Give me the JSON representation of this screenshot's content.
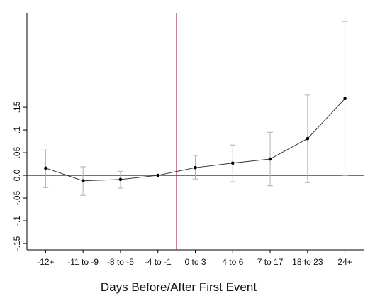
{
  "chart_data": {
    "type": "errorbar",
    "xlabel": "Days Before/After First Event",
    "categories": [
      "-12+",
      "-11 to -9",
      "-8 to -5",
      "-4 to -1",
      "0 to 3",
      "4 to 6",
      "7 to 17",
      "18 to 23",
      "24+"
    ],
    "values": [
      0.016,
      -0.012,
      -0.009,
      0,
      0.017,
      0.027,
      0.036,
      0.081,
      0.169
    ],
    "lower": [
      -0.027,
      -0.044,
      -0.028,
      null,
      -0.008,
      -0.014,
      -0.023,
      -0.016,
      0.0
    ],
    "upper": [
      0.056,
      0.019,
      0.009,
      null,
      0.044,
      0.067,
      0.095,
      0.177,
      0.339
    ],
    "color": "#333333",
    "ci_color": "#b0b0b0",
    "reference_color": "#a0154a",
    "reference_y": 0,
    "ylim": [
      -0.164,
      0.358
    ],
    "yticks": [
      {
        "value": -0.15,
        "label": "-.15"
      },
      {
        "value": -0.1,
        "label": "-.1"
      },
      {
        "value": -0.05,
        "label": "-.05"
      },
      {
        "value": 0,
        "label": "0.0"
      },
      {
        "value": 0.05,
        "label": ".05"
      },
      {
        "value": 0.1,
        "label": ".1"
      },
      {
        "value": 0.15,
        "label": ".15"
      }
    ]
  }
}
